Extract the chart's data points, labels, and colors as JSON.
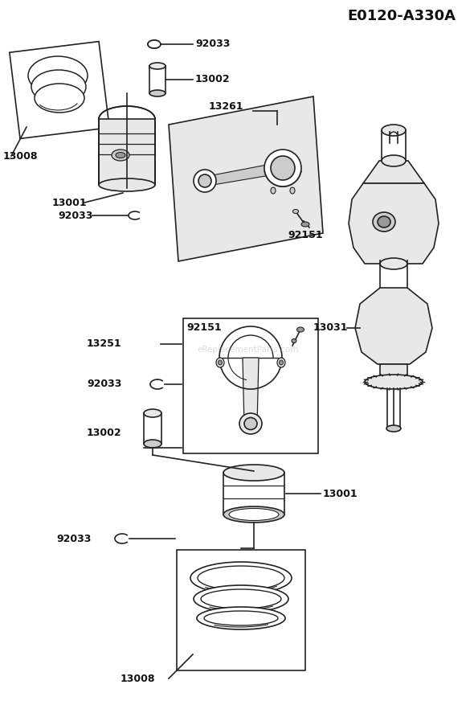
{
  "title": "E0120-A330A",
  "bg_color": "#ffffff",
  "watermark": "eReplacementParts.com",
  "fig_w": 5.9,
  "fig_h": 8.72,
  "dpi": 100,
  "lw": 1.2,
  "line_color": "#222222",
  "text_color": "#111111",
  "font_size": 9,
  "title_font_size": 13
}
